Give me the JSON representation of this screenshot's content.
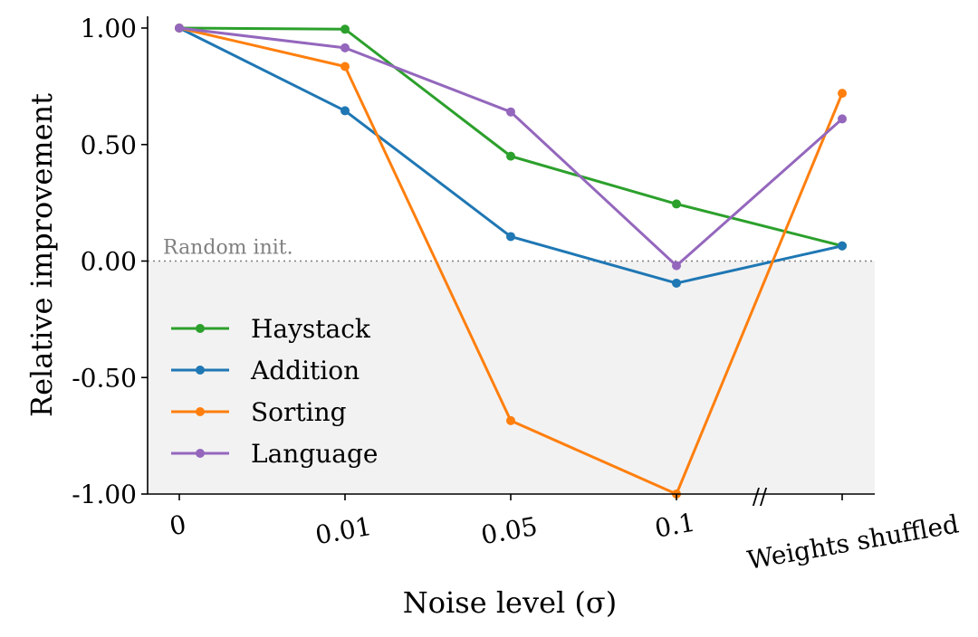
{
  "chart_data": {
    "type": "line",
    "title": "",
    "xlabel": "Noise level (σ)",
    "ylabel": "Relative improvement",
    "categories": [
      "0",
      "0.01",
      "0.05",
      "0.1",
      "Weights shuffled"
    ],
    "yticks": [
      "1.00",
      "0.50",
      "0.00",
      "-0.50",
      "-1.00"
    ],
    "ytick_values": [
      1.0,
      0.5,
      0.0,
      -0.5,
      -1.0
    ],
    "ylim": [
      -1.0,
      1.05
    ],
    "axis_break_marker": "//",
    "baseline": {
      "value": 0.0,
      "label": "Random init."
    },
    "shaded_region": {
      "from": -1.0,
      "to": 0.0,
      "color": "#f2f2f2"
    },
    "legend_position": "lower-left",
    "series": [
      {
        "name": "Haystack",
        "color": "#2ca02c",
        "values": [
          1.0,
          0.995,
          0.45,
          0.245,
          0.065
        ]
      },
      {
        "name": "Addition",
        "color": "#1f77b4",
        "values": [
          1.0,
          0.645,
          0.105,
          -0.095,
          0.065
        ]
      },
      {
        "name": "Sorting",
        "color": "#ff7f0e",
        "values": [
          1.0,
          0.835,
          -0.685,
          -1.0,
          0.72
        ]
      },
      {
        "name": "Language",
        "color": "#9467bd",
        "values": [
          1.0,
          0.915,
          0.64,
          -0.02,
          0.61
        ]
      }
    ]
  }
}
